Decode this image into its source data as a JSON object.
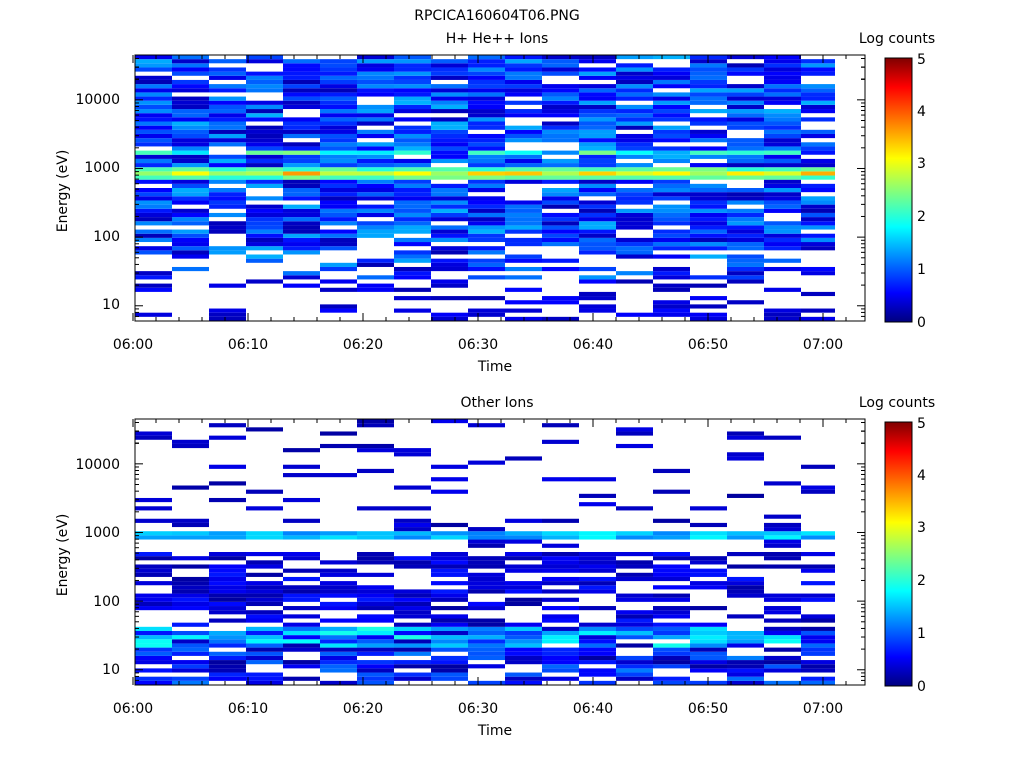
{
  "figure": {
    "title": "RPCICA160604T06.PNG"
  },
  "chart_data": [
    {
      "type": "heatmap",
      "title": "H+ He++ Ions",
      "xlabel": "Time",
      "ylabel": "Energy (eV)",
      "x_tick_labels": [
        "06:00",
        "06:10",
        "06:20",
        "06:30",
        "06:40",
        "06:50",
        "07:00"
      ],
      "x_range": [
        "06:00",
        "07:03"
      ],
      "y_tick_labels": [
        "10",
        "100",
        "1000",
        "10000"
      ],
      "y_range": [
        6,
        45000
      ],
      "y_scale": "log",
      "colorbar": {
        "label": "Log counts",
        "ticks": [
          "0",
          "1",
          "2",
          "3",
          "4",
          "5"
        ],
        "range": [
          0,
          5
        ],
        "colormap": "jet"
      },
      "columns": [
        "06:00",
        "06:03",
        "06:07",
        "06:10",
        "06:13",
        "06:17",
        "06:20",
        "06:23",
        "06:27",
        "06:30",
        "06:33",
        "06:37",
        "06:40",
        "06:43",
        "06:47",
        "06:50",
        "06:53",
        "06:57",
        "07:00"
      ],
      "features": [
        {
          "description": "dense band of counts across all energies from ~30 eV to ~40000 eV"
        },
        {
          "energy_eV": 850,
          "log_counts": 3.5,
          "note": "peak band"
        },
        {
          "energy_eV": 1700,
          "log_counts": 2.2,
          "note": "secondary band"
        }
      ]
    },
    {
      "type": "heatmap",
      "title": "Other Ions",
      "xlabel": "Time",
      "ylabel": "Energy (eV)",
      "x_tick_labels": [
        "06:00",
        "06:10",
        "06:20",
        "06:30",
        "06:40",
        "06:50",
        "07:00"
      ],
      "x_range": [
        "06:00",
        "07:03"
      ],
      "y_tick_labels": [
        "10",
        "100",
        "1000",
        "10000"
      ],
      "y_range": [
        6,
        45000
      ],
      "y_scale": "log",
      "colorbar": {
        "label": "Log counts",
        "ticks": [
          "0",
          "1",
          "2",
          "3",
          "4",
          "5"
        ],
        "range": [
          0,
          5
        ],
        "colormap": "jet"
      },
      "columns": [
        "06:00",
        "06:03",
        "06:07",
        "06:10",
        "06:13",
        "06:17",
        "06:20",
        "06:23",
        "06:27",
        "06:30",
        "06:33",
        "06:37",
        "06:40",
        "06:43",
        "06:47",
        "06:50",
        "06:53",
        "06:57",
        "07:00"
      ],
      "features": [
        {
          "energy_eV": 850,
          "log_counts": 1.8,
          "note": "band"
        },
        {
          "energy_eV": 30,
          "log_counts": 1.4,
          "note": "low-energy band"
        },
        {
          "description": "sparse counts above 2000 eV"
        }
      ]
    }
  ]
}
